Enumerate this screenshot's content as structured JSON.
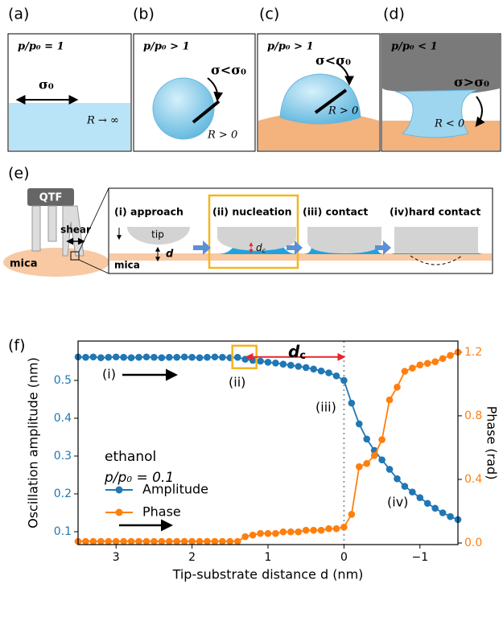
{
  "panels": {
    "a": {
      "label": "(a)",
      "title": "p/p₀ = 1",
      "sigma": "σ₀",
      "radius": "R → ∞"
    },
    "b": {
      "label": "(b)",
      "title": "p/p₀ > 1",
      "sigma": "σ<σ₀",
      "radius": "R > 0"
    },
    "c": {
      "label": "(c)",
      "title": "p/p₀ > 1",
      "sigma": "σ<σ₀",
      "radius": "R > 0"
    },
    "d": {
      "label": "(d)",
      "title": "p/p₀ < 1",
      "sigma": "σ>σ₀",
      "radius": "R < 0"
    },
    "e": {
      "label": "(e)",
      "device": "QTF",
      "shear": "shear",
      "substrate": "mica",
      "steps": [
        "(i) approach",
        "(ii) nucleation",
        "(iii) contact",
        "(iv)hard contact"
      ],
      "tip": "tip",
      "gap": "d",
      "dc": {
        "main": "d",
        "sub": "c"
      },
      "strip": "mica"
    },
    "f": {
      "label": "(f)"
    }
  },
  "chart_data": {
    "type": "line",
    "x": [
      3.5,
      3.4,
      3.3,
      3.2,
      3.1,
      3.0,
      2.9,
      2.8,
      2.7,
      2.6,
      2.5,
      2.4,
      2.3,
      2.2,
      2.1,
      2.0,
      1.9,
      1.8,
      1.7,
      1.6,
      1.5,
      1.4,
      1.3,
      1.2,
      1.1,
      1.0,
      0.9,
      0.8,
      0.7,
      0.6,
      0.5,
      0.4,
      0.3,
      0.2,
      0.1,
      0.0,
      -0.1,
      -0.2,
      -0.3,
      -0.4,
      -0.5,
      -0.6,
      -0.7,
      -0.8,
      -0.9,
      -1.0,
      -1.1,
      -1.2,
      -1.3,
      -1.4,
      -1.5
    ],
    "series": [
      {
        "name": "Amplitude",
        "color": "#1f77b4",
        "axis": "y",
        "values": [
          0.562,
          0.561,
          0.562,
          0.56,
          0.561,
          0.562,
          0.561,
          0.56,
          0.561,
          0.562,
          0.561,
          0.56,
          0.561,
          0.561,
          0.562,
          0.561,
          0.56,
          0.561,
          0.562,
          0.561,
          0.56,
          0.561,
          0.556,
          0.553,
          0.551,
          0.548,
          0.546,
          0.543,
          0.54,
          0.537,
          0.534,
          0.53,
          0.525,
          0.52,
          0.512,
          0.5,
          0.44,
          0.385,
          0.345,
          0.315,
          0.29,
          0.265,
          0.24,
          0.22,
          0.205,
          0.19,
          0.175,
          0.162,
          0.15,
          0.14,
          0.132
        ]
      },
      {
        "name": "Phase",
        "color": "#ff7f0e",
        "axis": "y2",
        "values": [
          0.01,
          0.01,
          0.01,
          0.01,
          0.01,
          0.01,
          0.01,
          0.01,
          0.01,
          0.01,
          0.01,
          0.01,
          0.01,
          0.01,
          0.01,
          0.01,
          0.01,
          0.01,
          0.01,
          0.01,
          0.01,
          0.01,
          0.04,
          0.05,
          0.06,
          0.06,
          0.06,
          0.07,
          0.07,
          0.07,
          0.08,
          0.08,
          0.08,
          0.09,
          0.09,
          0.1,
          0.18,
          0.48,
          0.5,
          0.55,
          0.65,
          0.9,
          0.98,
          1.08,
          1.1,
          1.12,
          1.13,
          1.14,
          1.16,
          1.18,
          1.2
        ]
      }
    ],
    "xlim": [
      3.5,
      -1.5
    ],
    "ylim": [
      0.066,
      0.604
    ],
    "y2lim": [
      -0.01,
      1.27
    ],
    "xticks": [
      3,
      2,
      1,
      0,
      {
        "value": -1,
        "label": "−1"
      }
    ],
    "yticks": [
      0.1,
      0.2,
      0.3,
      0.4,
      0.5
    ],
    "y2ticks": [
      {
        "value": 0,
        "label": "0.0"
      },
      0.4,
      0.8,
      1.2
    ],
    "xlabel": "Tip-substrate distance d (nm)",
    "ylabel": "Oscillation amplitude (nm)",
    "y2label": "Phase (rad)",
    "vline": 0,
    "dc_range": [
      1.3,
      0
    ],
    "dc_label": {
      "main": "d",
      "sub": "c"
    },
    "annotations": [
      "(i)",
      "(ii)",
      "(iii)",
      "(iv)",
      "ethanol",
      "p/p₀ = 0.1"
    ],
    "legend": "lower left"
  }
}
